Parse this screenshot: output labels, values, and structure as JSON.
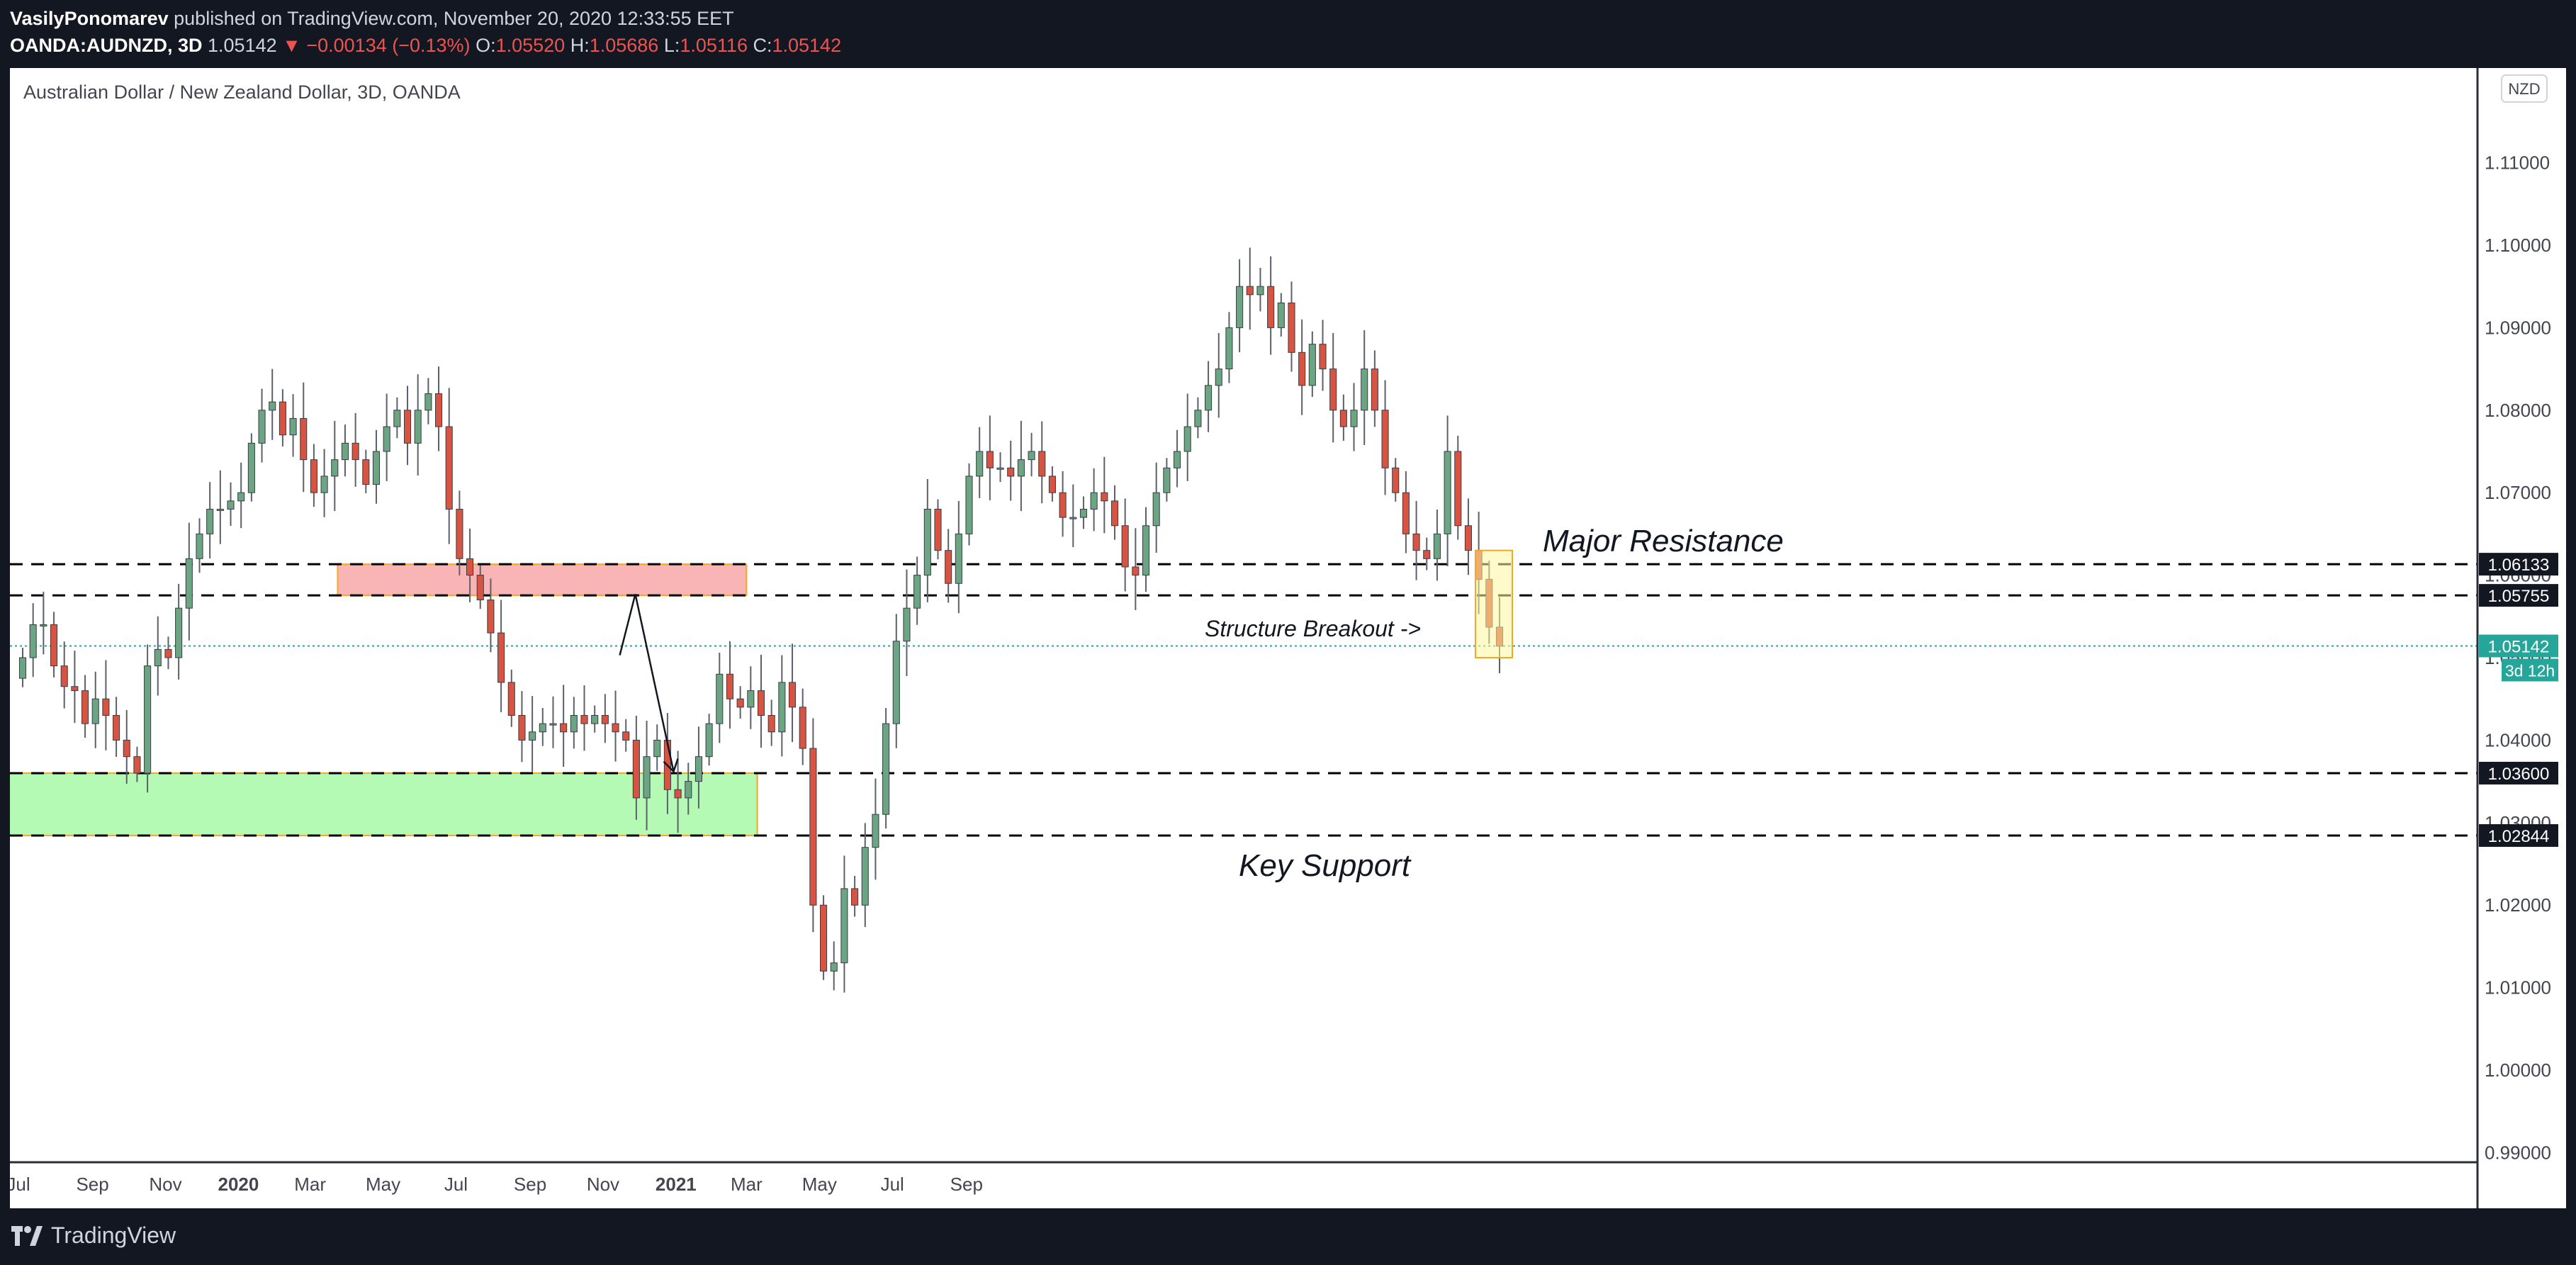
{
  "header": {
    "author": "VasilyPonomarev",
    "published_text": "published on TradingView.com, November 20, 2020 12:33:55 EET",
    "symbol": "OANDA:AUDNZD, 3D",
    "last": "1.05142",
    "change": "▼ −0.00134 (−0.13%)",
    "o_label": "O:",
    "o_value": "1.05520",
    "h_label": "H:",
    "h_value": "1.05686",
    "l_label": "L:",
    "l_value": "1.05116",
    "c_label": "C:",
    "c_value": "1.05142"
  },
  "footer": {
    "brand": "TradingView"
  },
  "chart_data": {
    "type": "candlestick",
    "title": "Australian Dollar / New Zealand Dollar, 3D, OANDA",
    "currency_badge": "NZD",
    "y_ticks": [
      "1.11000",
      "1.10000",
      "1.09000",
      "1.08000",
      "1.07000",
      "1.06000",
      "1.05000",
      "1.04000",
      "1.03000",
      "1.02000",
      "1.01000",
      "1.00000",
      "0.99000"
    ],
    "x_labels": [
      {
        "label": "Jul",
        "date": "2019-07-01",
        "bold": false
      },
      {
        "label": "Sep",
        "date": "2019-09-01",
        "bold": false
      },
      {
        "label": "Nov",
        "date": "2019-11-01",
        "bold": false
      },
      {
        "label": "2020",
        "date": "2020-01-01",
        "bold": true
      },
      {
        "label": "Mar",
        "date": "2020-03-01",
        "bold": false
      },
      {
        "label": "May",
        "date": "2020-05-01",
        "bold": false
      },
      {
        "label": "Jul",
        "date": "2020-07-01",
        "bold": false
      },
      {
        "label": "Sep",
        "date": "2020-09-01",
        "bold": false
      },
      {
        "label": "Nov",
        "date": "2020-11-01",
        "bold": false
      },
      {
        "label": "2021",
        "date": "2021-01-01",
        "bold": true
      },
      {
        "label": "Mar",
        "date": "2021-03-01",
        "bold": false
      },
      {
        "label": "May",
        "date": "2021-05-01",
        "bold": false
      },
      {
        "label": "Jul",
        "date": "2021-07-01",
        "bold": false
      },
      {
        "label": "Sep",
        "date": "2021-09-01",
        "bold": false
      }
    ],
    "closes": [
      1.05,
      1.054,
      1.054,
      1.049,
      1.0465,
      1.046,
      1.042,
      1.045,
      1.043,
      1.04,
      1.038,
      1.036,
      1.049,
      1.051,
      1.05,
      1.056,
      1.062,
      1.065,
      1.068,
      1.068,
      1.069,
      1.07,
      1.076,
      1.08,
      1.081,
      1.077,
      1.079,
      1.074,
      1.07,
      1.072,
      1.074,
      1.076,
      1.074,
      1.071,
      1.075,
      1.078,
      1.08,
      1.076,
      1.08,
      1.082,
      1.078,
      1.068,
      1.062,
      1.06,
      1.057,
      1.053,
      1.047,
      1.043,
      1.04,
      1.041,
      1.042,
      1.042,
      1.041,
      1.043,
      1.042,
      1.043,
      1.042,
      1.041,
      1.04,
      1.033,
      1.038,
      1.04,
      1.034,
      1.033,
      1.035,
      1.038,
      1.042,
      1.048,
      1.045,
      1.044,
      1.046,
      1.043,
      1.041,
      1.047,
      1.044,
      1.039,
      1.02,
      1.012,
      1.013,
      1.022,
      1.02,
      1.027,
      1.031,
      1.042,
      1.052,
      1.056,
      1.06,
      1.068,
      1.063,
      1.059,
      1.065,
      1.072,
      1.075,
      1.073,
      1.073,
      1.072,
      1.074,
      1.075,
      1.072,
      1.07,
      1.067,
      1.067,
      1.068,
      1.07,
      1.069,
      1.066,
      1.061,
      1.06,
      1.066,
      1.07,
      1.073,
      1.075,
      1.078,
      1.08,
      1.083,
      1.085,
      1.09,
      1.095,
      1.094,
      1.095,
      1.09,
      1.093,
      1.087,
      1.083,
      1.088,
      1.085,
      1.08,
      1.078,
      1.08,
      1.085,
      1.08,
      1.073,
      1.07,
      1.065,
      1.063,
      1.062,
      1.065,
      1.075,
      1.066,
      1.063,
      1.0595,
      1.0537,
      1.0514
    ],
    "price_labels": [
      {
        "value": 1.06133,
        "text": "1.06133",
        "style": "dark"
      },
      {
        "value": 1.05755,
        "text": "1.05755",
        "style": "dark"
      },
      {
        "value": 1.05142,
        "text": "1.05142",
        "style": "teal"
      },
      {
        "value": 1.036,
        "text": "1.03600",
        "style": "dark"
      },
      {
        "value": 1.02844,
        "text": "1.02844",
        "style": "dark"
      }
    ],
    "countdown": "3d 12h",
    "zones": [
      {
        "name": "Major Resistance",
        "from_date": "2020-03-24",
        "to_date": "2021-03-01",
        "low": 1.05755,
        "high": 1.06133,
        "color": "#f9b0b2"
      },
      {
        "name": "Key Support",
        "from_date": "2019-06-23",
        "to_date": "2021-03-10",
        "low": 1.02844,
        "high": 1.036,
        "color": "#b0f9b0"
      }
    ],
    "annotations": {
      "resistance_label": "Major Resistance",
      "support_label": "Key Support",
      "breakout_label": "Structure Breakout ->"
    },
    "colors": {
      "up": "#6ba583",
      "down": "#d75442",
      "teal": "#26a69a",
      "background": "#ffffff"
    }
  }
}
